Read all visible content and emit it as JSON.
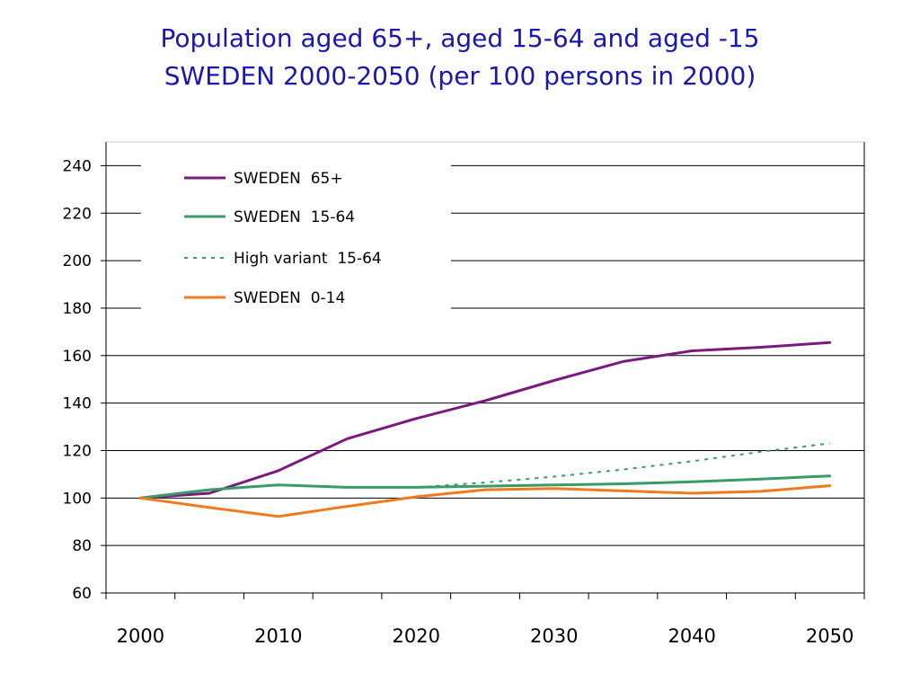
{
  "chart_data": {
    "type": "line",
    "title": "Population aged 65+, aged 15-64 and aged -15",
    "subtitle": "SWEDEN 2000-2050 (per 100 persons in 2000)",
    "xlabel": "",
    "ylabel": "",
    "x": [
      2000,
      2005,
      2010,
      2015,
      2020,
      2025,
      2030,
      2035,
      2040,
      2045,
      2050
    ],
    "x_tick_labels": [
      "2000",
      "2010",
      "2020",
      "2030",
      "2040",
      "2050"
    ],
    "x_ticks": [
      2000,
      2010,
      2020,
      2030,
      2040,
      2050
    ],
    "y_ticks": [
      60,
      80,
      100,
      120,
      140,
      160,
      180,
      200,
      220,
      240
    ],
    "y_tick_labels": [
      "60",
      "80",
      "100",
      "120",
      "140",
      "160",
      "180",
      "200",
      "220",
      "240"
    ],
    "xlim": [
      1997.5,
      2052.5
    ],
    "ylim": [
      60,
      250
    ],
    "grid": "horizontal",
    "legend_position": "top-left",
    "series": [
      {
        "name": "SWEDEN  65+",
        "color": "#7b1a7e",
        "style": "solid",
        "values": [
          100,
          102,
          111.5,
          125,
          133.5,
          141,
          149.5,
          157.5,
          162,
          163.5,
          165.5
        ]
      },
      {
        "name": "SWEDEN  15-64",
        "color": "#3a9b6a",
        "style": "solid",
        "values": [
          100,
          103.5,
          105.5,
          104.5,
          104.5,
          105,
          105.5,
          106,
          106.8,
          108,
          109.3
        ]
      },
      {
        "name": "High variant  15-64",
        "color": "#3a9b6a",
        "style": "dotted",
        "values": [
          100,
          103.5,
          105.5,
          104.5,
          104.5,
          106.5,
          109,
          112,
          115.5,
          119.5,
          123
        ]
      },
      {
        "name": "SWEDEN  0-14",
        "color": "#f07a1e",
        "style": "solid",
        "values": [
          100,
          96,
          92.2,
          96.5,
          100.5,
          103.5,
          104,
          103,
          102,
          102.8,
          105.2
        ]
      }
    ]
  }
}
